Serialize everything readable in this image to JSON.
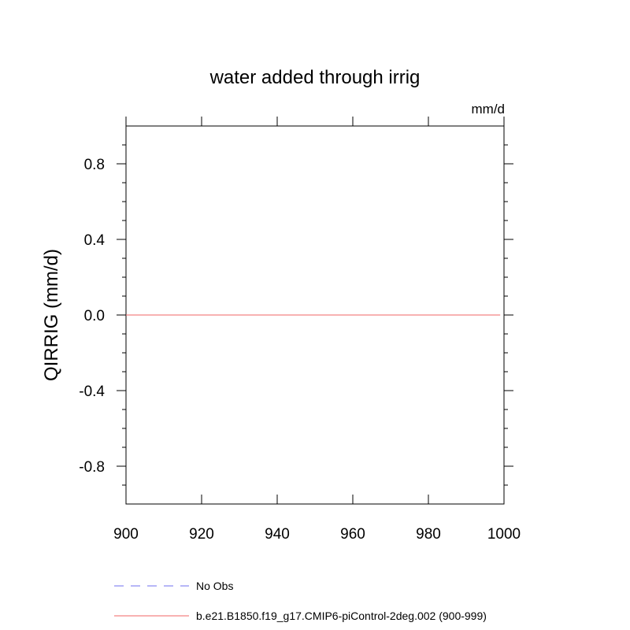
{
  "chart_data": {
    "type": "line",
    "title": "water added through irrig",
    "units_label": "mm/d",
    "ylabel": "QIRRIG  (mm/d)",
    "xlim": [
      900,
      1000
    ],
    "ylim": [
      -1,
      1
    ],
    "x_ticks": [
      900,
      920,
      940,
      960,
      980,
      1000
    ],
    "x_tick_labels": [
      "900",
      "920",
      "940",
      "960",
      "980",
      "1000"
    ],
    "y_ticks": [
      -0.8,
      -0.4,
      0.0,
      0.4,
      0.8
    ],
    "y_tick_labels": [
      "-0.8",
      "-0.4",
      "0.0",
      "0.4",
      "0.8"
    ],
    "grid": false,
    "legend_placement": "bottom",
    "series": [
      {
        "name": "No Obs",
        "color": "#6f6fef",
        "dash": "dashed",
        "x": [],
        "y": []
      },
      {
        "name": "b.e21.B1850.f19_g17.CMIP6-piControl-2deg.002 (900-999)",
        "color": "#f06666",
        "dash": "solid",
        "x": [
          900,
          999
        ],
        "y": [
          0.0,
          0.0
        ]
      }
    ]
  }
}
